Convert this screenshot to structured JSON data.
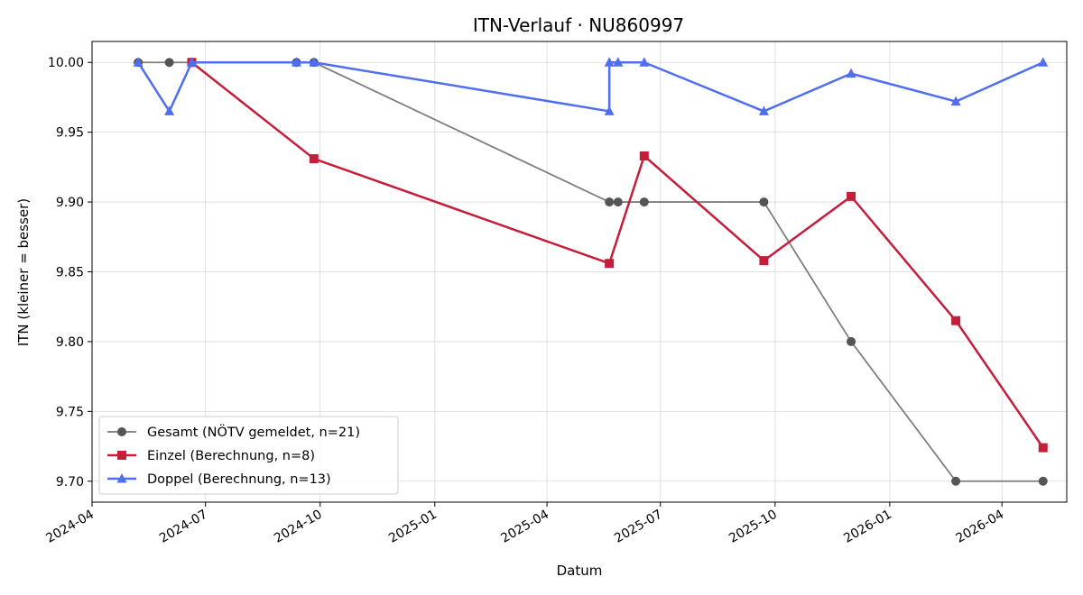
{
  "chart_data": {
    "type": "line",
    "title": "ITN-Verlauf · NU860997",
    "xlabel": "Datum",
    "ylabel": "ITN  (kleiner = besser)",
    "ylim": [
      9.685,
      10.015
    ],
    "xlim": [
      "2024-04-01",
      "2026-05-23"
    ],
    "grid": true,
    "legend_position": "lower-left",
    "y_ticks": [
      "9.70",
      "9.75",
      "9.80",
      "9.85",
      "9.90",
      "9.95",
      "10.00"
    ],
    "x_ticks": [
      "2024-04",
      "2024-07",
      "2024-10",
      "2025-01",
      "2025-04",
      "2025-07",
      "2025-10",
      "2026-01",
      "2026-04"
    ],
    "series": [
      {
        "name": "Gesamt (NÖTV gemeldet, n=21)",
        "color": "#777777",
        "marker": "circle",
        "points": [
          [
            "2024-05-08",
            10.0
          ],
          [
            "2024-06-02",
            10.0
          ],
          [
            "2024-06-20",
            10.0
          ],
          [
            "2024-09-12",
            10.0
          ],
          [
            "2024-09-26",
            10.0
          ],
          [
            "2025-05-21",
            9.9
          ],
          [
            "2025-05-28",
            9.9
          ],
          [
            "2025-06-18",
            9.9
          ],
          [
            "2025-09-22",
            9.9
          ],
          [
            "2025-12-01",
            9.8
          ],
          [
            "2026-02-23",
            9.7
          ],
          [
            "2026-05-04",
            9.7
          ]
        ]
      },
      {
        "name": "Einzel (Berechnung, n=8)",
        "color": "#c41e3a",
        "marker": "square",
        "points": [
          [
            "2024-06-20",
            10.0
          ],
          [
            "2024-09-26",
            9.931
          ],
          [
            "2025-05-21",
            9.856
          ],
          [
            "2025-06-18",
            9.933
          ],
          [
            "2025-09-22",
            9.858
          ],
          [
            "2025-12-01",
            9.904
          ],
          [
            "2026-02-23",
            9.815
          ],
          [
            "2026-05-04",
            9.724
          ]
        ]
      },
      {
        "name": "Doppel (Berechnung, n=13)",
        "color": "#4f6ff0",
        "marker": "triangle",
        "points": [
          [
            "2024-05-08",
            10.0
          ],
          [
            "2024-06-02",
            9.965
          ],
          [
            "2024-06-20",
            10.0
          ],
          [
            "2024-09-12",
            10.0
          ],
          [
            "2024-09-26",
            10.0
          ],
          [
            "2025-05-21",
            9.965
          ],
          [
            "2025-05-21",
            10.0
          ],
          [
            "2025-05-28",
            10.0
          ],
          [
            "2025-06-18",
            10.0
          ],
          [
            "2025-09-22",
            9.965
          ],
          [
            "2025-12-01",
            9.992
          ],
          [
            "2026-02-23",
            9.972
          ],
          [
            "2026-05-04",
            10.0
          ]
        ]
      }
    ]
  }
}
